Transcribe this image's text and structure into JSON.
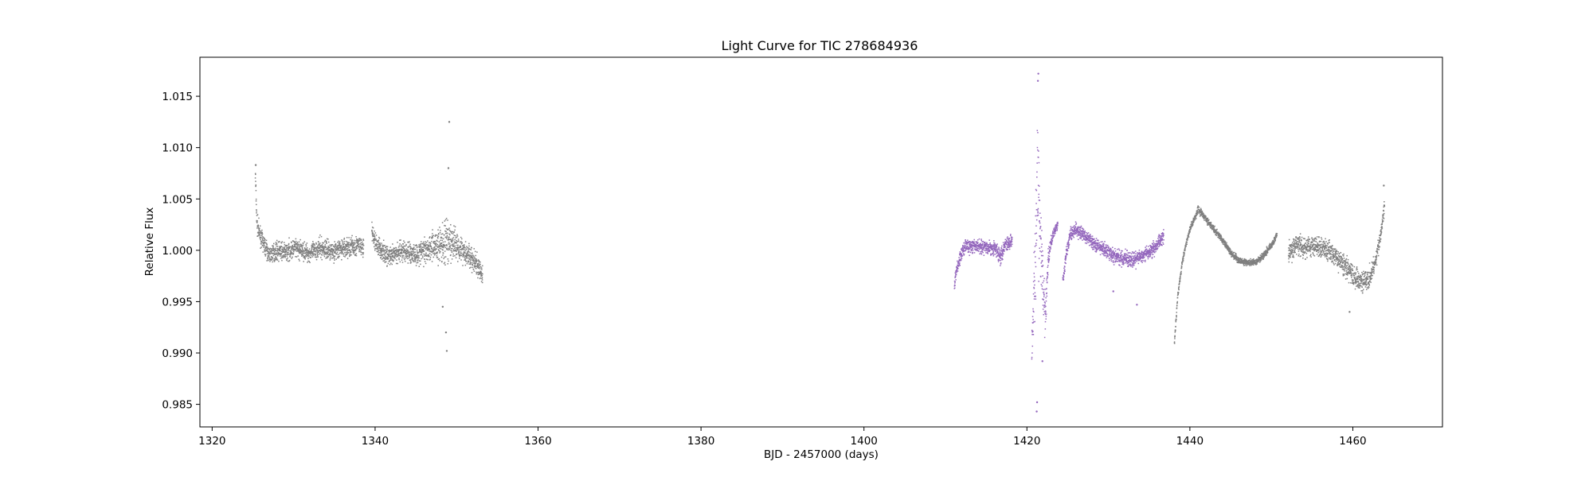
{
  "chart_data": {
    "type": "scatter",
    "title": "Light Curve for TIC 278684936",
    "xlabel": "BJD - 2457000 (days)",
    "ylabel": "Relative Flux",
    "xlim": [
      1318.5,
      1471
    ],
    "ylim": [
      0.9828,
      1.0188
    ],
    "xticks": [
      1320,
      1340,
      1360,
      1380,
      1400,
      1420,
      1440,
      1460
    ],
    "xtick_labels": [
      "1320",
      "1340",
      "1360",
      "1380",
      "1400",
      "1420",
      "1440",
      "1460"
    ],
    "yticks": [
      0.985,
      0.99,
      0.995,
      1.0,
      1.005,
      1.01,
      1.015
    ],
    "ytick_labels": [
      "0.985",
      "0.990",
      "0.995",
      "1.000",
      "1.005",
      "1.010",
      "1.015"
    ],
    "grid": false,
    "legend": "none",
    "colors": {
      "gray": "#7f7f7f",
      "purple": "#9467bd"
    },
    "segments": [
      {
        "color": "gray",
        "x": [
          1325.3,
          1325.5,
          1326,
          1327,
          1328,
          1329,
          1330,
          1331,
          1332,
          1333,
          1334,
          1335,
          1336,
          1337,
          1338,
          1338.6
        ],
        "y": [
          1.0075,
          1.0025,
          1.0012,
          0.9995,
          1.0,
          0.9998,
          1.0002,
          1.0,
          0.9997,
          1.0002,
          1.0001,
          0.9999,
          1.0002,
          1.0003,
          1.0005,
          1.0002
        ],
        "spread": [
          0.0012,
          0.0012,
          0.001,
          0.001,
          0.0011,
          0.0011,
          0.0012,
          0.0011,
          0.0011,
          0.0012,
          0.0012,
          0.0011,
          0.0012,
          0.0013,
          0.0013,
          0.0012
        ]
      },
      {
        "color": "gray",
        "x": [
          1339.6,
          1340,
          1341,
          1342,
          1343,
          1344,
          1345,
          1346,
          1347,
          1348,
          1348.8,
          1349.5,
          1350.5,
          1351.5,
          1352.5,
          1353.2
        ],
        "y": [
          1.0018,
          1.0008,
          0.9998,
          0.9993,
          1.0,
          0.9998,
          0.9996,
          1.0,
          1.0004,
          1.0005,
          1.0006,
          1.0008,
          1.0002,
          0.9995,
          0.9985,
          0.9975
        ],
        "spread": [
          0.0011,
          0.0012,
          0.0012,
          0.0012,
          0.0013,
          0.0014,
          0.0014,
          0.0015,
          0.0018,
          0.0024,
          0.003,
          0.002,
          0.0016,
          0.0015,
          0.0014,
          0.0013
        ]
      },
      {
        "color": "purple",
        "x": [
          1411.1,
          1411.5,
          1412,
          1412.5,
          1413,
          1414,
          1415,
          1416,
          1416.8,
          1417.3,
          1418,
          1418.2
        ],
        "y": [
          0.9968,
          0.9985,
          0.9998,
          1.0005,
          1.0003,
          1.0004,
          1.0003,
          1.0002,
          0.9995,
          1.0006,
          1.0008,
          1.0012
        ],
        "spread": [
          0.001,
          0.0009,
          0.0008,
          0.0008,
          0.0008,
          0.0008,
          0.0008,
          0.0008,
          0.0012,
          0.0009,
          0.0008,
          0.0008
        ]
      },
      {
        "color": "purple",
        "x": [
          1420.6,
          1421,
          1421.3,
          1421.6,
          1422,
          1422.3,
          1422.6,
          1423,
          1423.4,
          1423.8
        ],
        "y": [
          0.9915,
          0.998,
          1.006,
          1.002,
          0.996,
          0.9935,
          0.999,
          1.001,
          1.002,
          1.0025
        ],
        "spread": [
          0.004,
          0.006,
          0.008,
          0.006,
          0.005,
          0.003,
          0.0015,
          0.0008,
          0.0006,
          0.0006
        ]
      },
      {
        "color": "purple",
        "x": [
          1424.4,
          1424.8,
          1425.3,
          1426,
          1427,
          1428,
          1429,
          1430,
          1431,
          1432,
          1433,
          1434,
          1435,
          1436,
          1436.8
        ],
        "y": [
          0.997,
          0.9995,
          1.0015,
          1.002,
          1.0015,
          1.0008,
          1.0003,
          0.9998,
          0.9993,
          0.9992,
          0.999,
          0.9994,
          0.9998,
          1.0005,
          1.0015
        ],
        "spread": [
          0.0008,
          0.0008,
          0.0008,
          0.0008,
          0.0008,
          0.0008,
          0.0008,
          0.0009,
          0.001,
          0.0009,
          0.0009,
          0.0008,
          0.0008,
          0.0009,
          0.0009
        ]
      },
      {
        "color": "gray",
        "x": [
          1438.1,
          1438.5,
          1439,
          1439.5,
          1440,
          1440.5,
          1441,
          1441.5,
          1442,
          1443,
          1444,
          1445,
          1446,
          1447,
          1448,
          1449,
          1450,
          1450.7
        ],
        "y": [
          0.991,
          0.9955,
          0.9985,
          1.0005,
          1.002,
          1.003,
          1.004,
          1.0036,
          1.003,
          1.002,
          1.001,
          0.9998,
          0.999,
          0.9988,
          0.9988,
          0.9995,
          1.0005,
          1.0015
        ],
        "spread": [
          0.0004,
          0.0004,
          0.0004,
          0.0004,
          0.0004,
          0.0004,
          0.0005,
          0.0005,
          0.0004,
          0.0004,
          0.0004,
          0.0004,
          0.0004,
          0.0004,
          0.0004,
          0.0004,
          0.0004,
          0.0004
        ]
      },
      {
        "color": "gray",
        "x": [
          1452.1,
          1453,
          1454,
          1455,
          1456,
          1457,
          1458,
          1459,
          1460,
          1461,
          1462,
          1462.8,
          1463.5,
          1463.9
        ],
        "y": [
          0.9998,
          1.0005,
          1.0002,
          1.0005,
          1.0003,
          1.0,
          0.9993,
          0.9985,
          0.9975,
          0.997,
          0.9972,
          0.999,
          1.0018,
          1.0045
        ],
        "spread": [
          0.0012,
          0.0014,
          0.0013,
          0.0013,
          0.0013,
          0.0014,
          0.0013,
          0.0013,
          0.0014,
          0.0013,
          0.0012,
          0.001,
          0.001,
          0.001
        ]
      }
    ],
    "outliers": [
      {
        "x": 1325.35,
        "y": 1.0083,
        "color": "gray"
      },
      {
        "x": 1348.7,
        "y": 0.992,
        "color": "gray"
      },
      {
        "x": 1348.8,
        "y": 0.9902,
        "color": "gray"
      },
      {
        "x": 1349.0,
        "y": 1.008,
        "color": "gray"
      },
      {
        "x": 1349.1,
        "y": 1.0125,
        "color": "gray"
      },
      {
        "x": 1348.3,
        "y": 0.9945,
        "color": "gray"
      },
      {
        "x": 1421.4,
        "y": 1.0172,
        "color": "purple"
      },
      {
        "x": 1421.35,
        "y": 1.0165,
        "color": "purple"
      },
      {
        "x": 1421.2,
        "y": 0.9843,
        "color": "purple"
      },
      {
        "x": 1421.25,
        "y": 0.9852,
        "color": "purple"
      },
      {
        "x": 1421.9,
        "y": 0.9892,
        "color": "purple"
      },
      {
        "x": 1433.5,
        "y": 0.9947,
        "color": "purple"
      },
      {
        "x": 1430.6,
        "y": 0.996,
        "color": "purple"
      },
      {
        "x": 1459.6,
        "y": 0.994,
        "color": "gray"
      },
      {
        "x": 1463.8,
        "y": 1.0063,
        "color": "gray"
      }
    ]
  }
}
